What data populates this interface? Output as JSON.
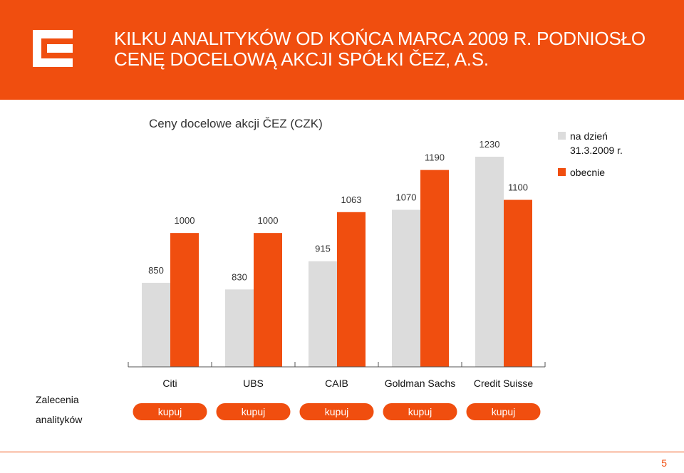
{
  "header": {
    "title_line1": "KILKU ANALITYKÓW OD KOŃCA MARCA 2009 R. PODNIOSŁO",
    "title_line2": "CENĘ DOCELOWĄ AKCJI SPÓŁKI ČEZ, A.S.",
    "background_color": "#f04e0f",
    "logo_icon": "cez-logo-icon"
  },
  "footer": {
    "page_number": "5"
  },
  "recommendation": {
    "label_line1": "Zalecenia",
    "label_line2": "analityków",
    "pill_color": "#f04e0f"
  },
  "chart_data": {
    "type": "bar",
    "title": "Ceny docelowe akcji ČEZ (CZK)",
    "categories": [
      "Citi",
      "UBS",
      "CAIB",
      "Goldman Sachs",
      "Credit Suisse"
    ],
    "series": [
      {
        "name": "na dzień 31.3.2009 r.",
        "color": "#dcdcdc",
        "values": [
          850,
          830,
          915,
          1070,
          1230
        ]
      },
      {
        "name": "obecnie",
        "color": "#f04e0f",
        "values": [
          1000,
          1000,
          1063,
          1190,
          1100
        ]
      }
    ],
    "recommendations": [
      "kupuj",
      "kupuj",
      "kupuj",
      "kupuj",
      "kupuj"
    ],
    "ylim": [
      595,
      1290
    ],
    "legend_position": "top-right",
    "grid": false
  }
}
